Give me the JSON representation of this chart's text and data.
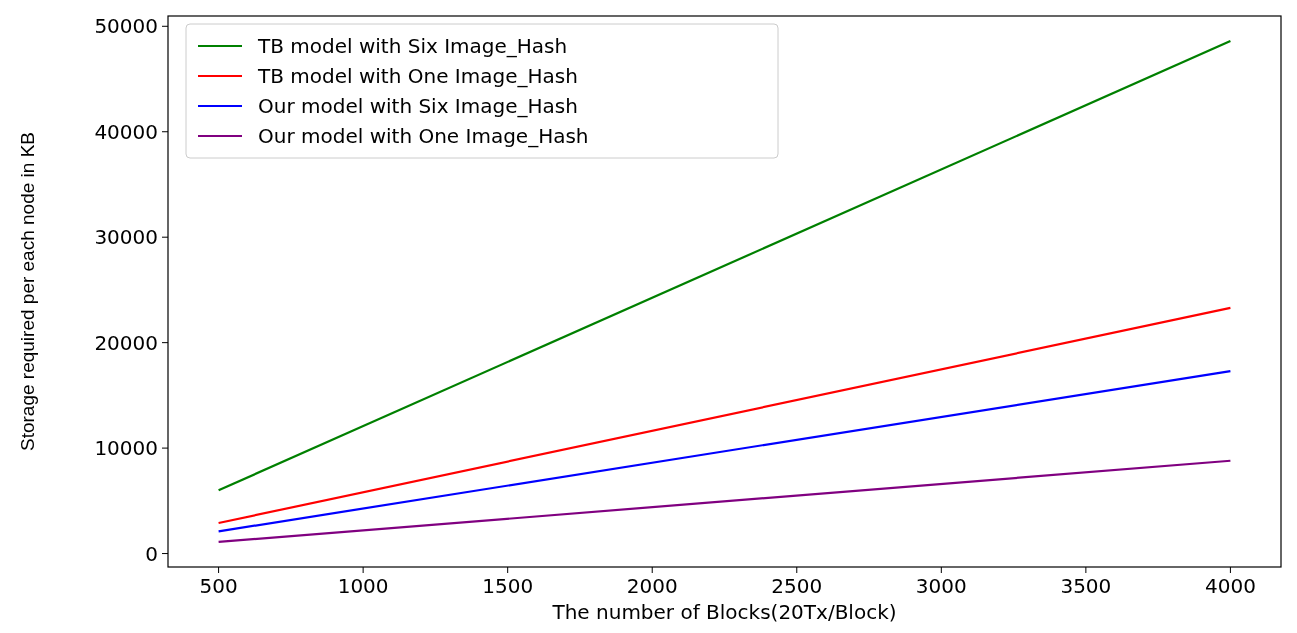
{
  "chart_data": {
    "type": "line",
    "xlabel": "The number of Blocks(20Tx/Block)",
    "ylabel": "Storage required per each node in KB",
    "x": [
      500,
      4000
    ],
    "series": [
      {
        "name": "TB model with Six Image_Hash",
        "color": "#008000",
        "values": [
          6000,
          48600
        ]
      },
      {
        "name": "TB model with One Image_Hash",
        "color": "#ff0000",
        "values": [
          2900,
          23300
        ]
      },
      {
        "name": "Our model with Six Image_Hash",
        "color": "#0000ff",
        "values": [
          2100,
          17300
        ]
      },
      {
        "name": "Our model with One Image_Hash",
        "color": "#800080",
        "values": [
          1100,
          8800
        ]
      }
    ],
    "xlim": [
      325,
      4175
    ],
    "xticks": [
      500,
      1000,
      1500,
      2000,
      2500,
      3000,
      3500,
      4000
    ],
    "ylim": [
      -1275,
      50975
    ],
    "yticks": [
      0,
      10000,
      20000,
      30000,
      40000,
      50000
    ],
    "legend": "top left",
    "grid": false,
    "marker": "none",
    "line_style": "solid"
  }
}
